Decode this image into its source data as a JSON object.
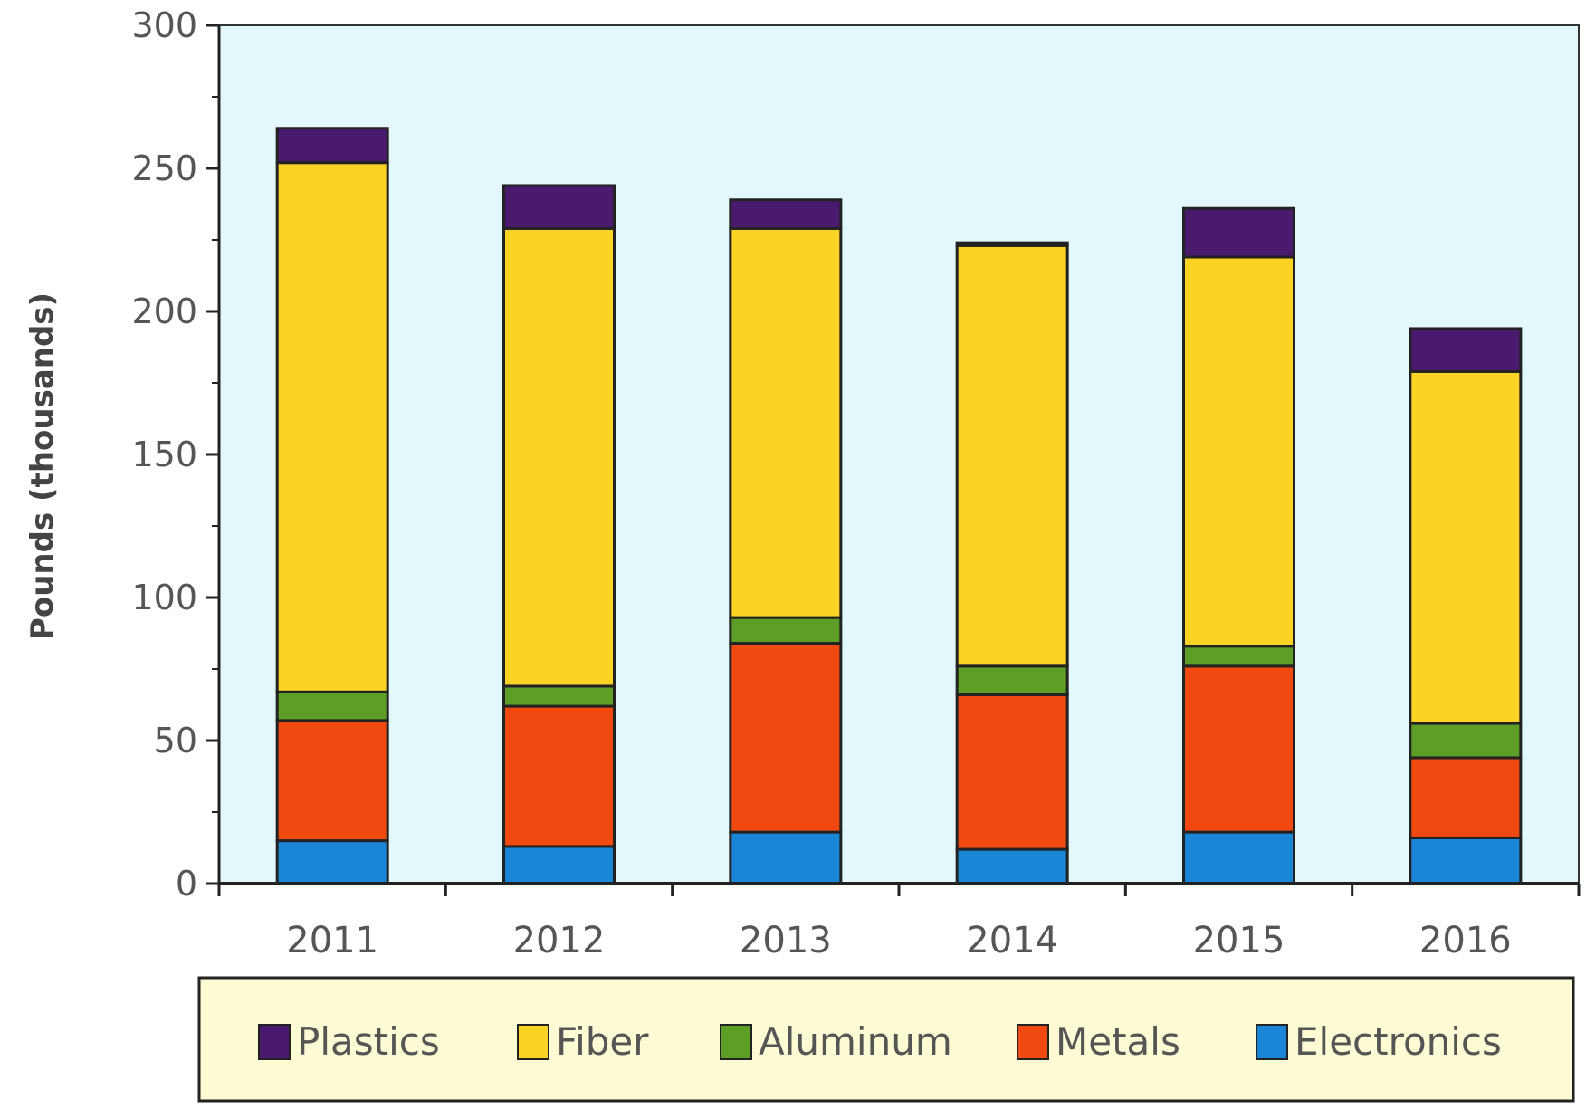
{
  "chart_data": {
    "type": "bar",
    "stacked": true,
    "title": "",
    "xlabel": "",
    "ylabel": "Pounds (thousands)",
    "ylim": [
      0,
      300
    ],
    "yticks": [
      0,
      50,
      100,
      150,
      200,
      250,
      300
    ],
    "categories": [
      "2011",
      "2012",
      "2013",
      "2014",
      "2015",
      "2016"
    ],
    "series": [
      {
        "name": "Electronics",
        "color": "#1a87d6",
        "values": [
          15,
          13,
          18,
          12,
          18,
          16
        ]
      },
      {
        "name": "Metals",
        "color": "#f04a10",
        "values": [
          42,
          49,
          66,
          54,
          58,
          28
        ]
      },
      {
        "name": "Aluminum",
        "color": "#5c9e26",
        "values": [
          10,
          7,
          9,
          10,
          7,
          12
        ]
      },
      {
        "name": "Fiber",
        "color": "#fbd325",
        "values": [
          185,
          160,
          136,
          147,
          136,
          123
        ]
      },
      {
        "name": "Plastics",
        "color": "#4a1a6e",
        "values": [
          12,
          15,
          10,
          1,
          17,
          15
        ]
      }
    ],
    "legend_order": [
      "Plastics",
      "Fiber",
      "Aluminum",
      "Metals",
      "Electronics"
    ],
    "legend_position": "bottom",
    "plot_background": "#e3f8fb",
    "legend_background": "#fdfbd3",
    "grid": false
  }
}
